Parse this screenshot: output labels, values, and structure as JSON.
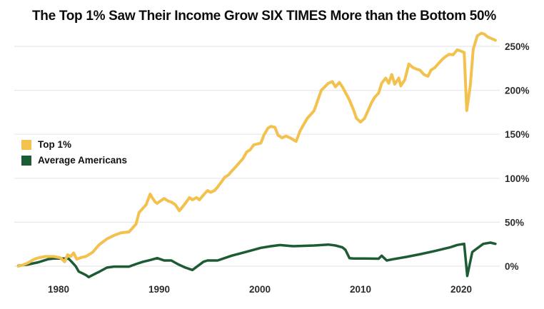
{
  "page": {
    "background_color": "#ffffff",
    "title_color": "#0d0d0d",
    "tick_label_color": "#2d2d2d",
    "gridline_color": "#e8e8e8"
  },
  "chart_data": {
    "type": "line",
    "title": "The Top 1% Saw Their Income Grow SIX TIMES More than the Bottom 50%",
    "xlabel": "",
    "ylabel": "",
    "grid": "horizontal-only",
    "legend_position": "middle-left",
    "x_axis": {
      "tick_labels": [
        "1980",
        "1990",
        "2000",
        "2010",
        "2020"
      ],
      "tick_values": [
        1980,
        1990,
        2000,
        2010,
        2020
      ],
      "range": [
        1975.6,
        2023.9
      ]
    },
    "y_axis": {
      "side": "right",
      "unit": "%",
      "tick_labels": [
        "0%",
        "50%",
        "100%",
        "150%",
        "200%",
        "250%"
      ],
      "tick_values": [
        0,
        50,
        100,
        150,
        200,
        250
      ],
      "range": [
        -15,
        268
      ]
    },
    "series": [
      {
        "name": "Top 1%",
        "color": "#F2C14E",
        "stroke_width": 4,
        "points": [
          [
            1976,
            0
          ],
          [
            1976.5,
            1.5
          ],
          [
            1977,
            4
          ],
          [
            1977.5,
            7.5
          ],
          [
            1978,
            9.5
          ],
          [
            1978.7,
            11
          ],
          [
            1979.5,
            11
          ],
          [
            1980.2,
            9.5
          ],
          [
            1980.6,
            5
          ],
          [
            1980.9,
            13
          ],
          [
            1981.2,
            11
          ],
          [
            1981.5,
            15
          ],
          [
            1981.8,
            8
          ],
          [
            1982.3,
            10
          ],
          [
            1982.7,
            11
          ],
          [
            1983,
            13
          ],
          [
            1983.4,
            16
          ],
          [
            1984,
            24
          ],
          [
            1984.8,
            31
          ],
          [
            1985.5,
            35
          ],
          [
            1986.2,
            38
          ],
          [
            1987,
            39
          ],
          [
            1987.7,
            48
          ],
          [
            1988,
            61
          ],
          [
            1988.7,
            70
          ],
          [
            1989.1,
            82
          ],
          [
            1989.3,
            78
          ],
          [
            1989.6,
            73
          ],
          [
            1989.8,
            71.5
          ],
          [
            1990.1,
            74
          ],
          [
            1990.5,
            77
          ],
          [
            1990.9,
            74
          ],
          [
            1991.2,
            73
          ],
          [
            1991.6,
            70
          ],
          [
            1992,
            63
          ],
          [
            1992.6,
            71.5
          ],
          [
            1993,
            78
          ],
          [
            1993.3,
            75.5
          ],
          [
            1993.7,
            78
          ],
          [
            1994,
            75.5
          ],
          [
            1994.4,
            81
          ],
          [
            1994.8,
            86
          ],
          [
            1995.1,
            84
          ],
          [
            1995.5,
            86
          ],
          [
            1995.8,
            90
          ],
          [
            1996.2,
            96
          ],
          [
            1996.5,
            101
          ],
          [
            1996.9,
            104
          ],
          [
            1997.2,
            108
          ],
          [
            1997.6,
            113
          ],
          [
            1997.9,
            117
          ],
          [
            1998.3,
            122
          ],
          [
            1998.7,
            130
          ],
          [
            1999,
            132
          ],
          [
            1999.4,
            138
          ],
          [
            1999.7,
            139
          ],
          [
            2000.1,
            140
          ],
          [
            2000.4,
            149
          ],
          [
            2000.8,
            157
          ],
          [
            2001.1,
            159
          ],
          [
            2001.5,
            158
          ],
          [
            2001.8,
            149
          ],
          [
            2002.2,
            146
          ],
          [
            2002.6,
            148
          ],
          [
            2003,
            146
          ],
          [
            2003.6,
            142
          ],
          [
            2004,
            154
          ],
          [
            2004.7,
            168
          ],
          [
            2005.4,
            177
          ],
          [
            2006.1,
            200
          ],
          [
            2006.8,
            208
          ],
          [
            2007.2,
            210
          ],
          [
            2007.5,
            204
          ],
          [
            2007.9,
            209
          ],
          [
            2008.2,
            204
          ],
          [
            2008.9,
            189
          ],
          [
            2009.3,
            178
          ],
          [
            2009.6,
            168
          ],
          [
            2010,
            164
          ],
          [
            2010.4,
            168
          ],
          [
            2011.1,
            186
          ],
          [
            2011.4,
            192
          ],
          [
            2011.8,
            197
          ],
          [
            2012.1,
            208
          ],
          [
            2012.5,
            214
          ],
          [
            2012.8,
            208
          ],
          [
            2013.1,
            218
          ],
          [
            2013.4,
            207
          ],
          [
            2013.8,
            214
          ],
          [
            2014,
            205
          ],
          [
            2014.4,
            212
          ],
          [
            2014.8,
            230
          ],
          [
            2015.2,
            226
          ],
          [
            2015.6,
            224
          ],
          [
            2015.9,
            223
          ],
          [
            2016.3,
            218
          ],
          [
            2016.7,
            216
          ],
          [
            2017,
            223
          ],
          [
            2017.4,
            226
          ],
          [
            2017.7,
            230
          ],
          [
            2018.1,
            235
          ],
          [
            2018.4,
            238
          ],
          [
            2018.8,
            241
          ],
          [
            2019.2,
            240.5
          ],
          [
            2019.6,
            246
          ],
          [
            2019.9,
            245
          ],
          [
            2020.3,
            243
          ],
          [
            2020.55,
            177
          ],
          [
            2020.9,
            205
          ],
          [
            2021.2,
            247
          ],
          [
            2021.6,
            262
          ],
          [
            2022,
            265
          ],
          [
            2022.3,
            264
          ],
          [
            2022.6,
            261
          ],
          [
            2023,
            259
          ],
          [
            2023.4,
            257
          ]
        ]
      },
      {
        "name": "Average Americans",
        "color": "#1C5B33",
        "stroke_width": 3.5,
        "points": [
          [
            1976,
            0.5
          ],
          [
            1977,
            2
          ],
          [
            1978,
            4.5
          ],
          [
            1979,
            8
          ],
          [
            1979.5,
            8.7
          ],
          [
            1980.5,
            8.7
          ],
          [
            1981,
            8.5
          ],
          [
            1981.3,
            5
          ],
          [
            1981.7,
            0
          ],
          [
            1982,
            -6
          ],
          [
            1982.7,
            -10
          ],
          [
            1983,
            -12.4
          ],
          [
            1983.4,
            -10
          ],
          [
            1984.1,
            -6
          ],
          [
            1984.8,
            -1.6
          ],
          [
            1985.5,
            -0.5
          ],
          [
            1986.2,
            -0.5
          ],
          [
            1987,
            -0.5
          ],
          [
            1987.7,
            2.4
          ],
          [
            1988.4,
            5
          ],
          [
            1989.1,
            7
          ],
          [
            1989.8,
            9.2
          ],
          [
            1990.5,
            6.5
          ],
          [
            1991.2,
            6.5
          ],
          [
            1991.9,
            2
          ],
          [
            1992.6,
            -1.6
          ],
          [
            1993.3,
            -4.3
          ],
          [
            1994.4,
            5
          ],
          [
            1994.8,
            6.5
          ],
          [
            1995.8,
            6.5
          ],
          [
            1997.2,
            11.9
          ],
          [
            1998.7,
            16.5
          ],
          [
            2000.1,
            20.9
          ],
          [
            2001.1,
            22.7
          ],
          [
            2002,
            24
          ],
          [
            2003.3,
            22.7
          ],
          [
            2005.4,
            23.5
          ],
          [
            2006.8,
            24.6
          ],
          [
            2007.5,
            23.5
          ],
          [
            2008.2,
            21.4
          ],
          [
            2008.5,
            18.7
          ],
          [
            2008.9,
            9.2
          ],
          [
            2009.3,
            8.7
          ],
          [
            2010.4,
            8.7
          ],
          [
            2011.8,
            8.5
          ],
          [
            2012.1,
            11.9
          ],
          [
            2012.6,
            6.5
          ],
          [
            2013.2,
            7.9
          ],
          [
            2014.6,
            10.6
          ],
          [
            2016,
            13.8
          ],
          [
            2017.4,
            17.3
          ],
          [
            2018.9,
            21.4
          ],
          [
            2019.6,
            24.1
          ],
          [
            2020.3,
            25.4
          ],
          [
            2020.6,
            -11.1
          ],
          [
            2021.1,
            16
          ],
          [
            2021.4,
            18.7
          ],
          [
            2022.2,
            25.4
          ],
          [
            2022.9,
            26.8
          ],
          [
            2023.4,
            25.4
          ]
        ]
      }
    ]
  }
}
